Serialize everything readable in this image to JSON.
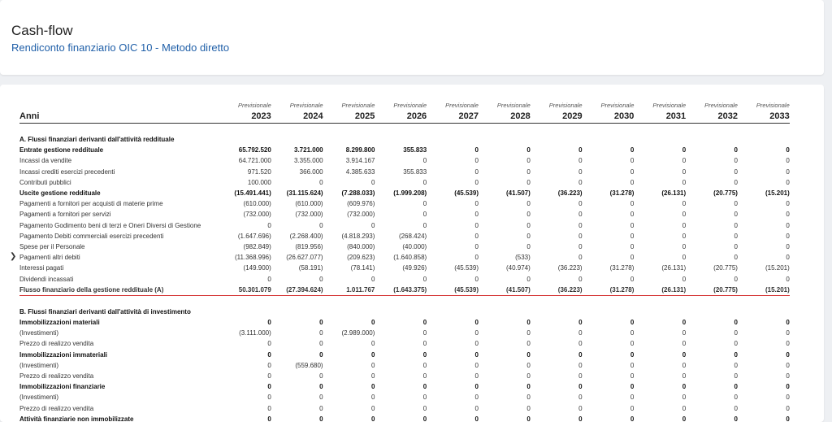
{
  "header": {
    "title": "Cash-flow",
    "subtitle": "Rendiconto finanziario OIC 10 - Metodo diretto"
  },
  "table": {
    "prev_label": "Previsionale",
    "anni_label": "Anni",
    "years": [
      "2023",
      "2024",
      "2025",
      "2026",
      "2027",
      "2028",
      "2029",
      "2030",
      "2031",
      "2032",
      "2033"
    ],
    "rows": [
      {
        "label": "A. Flussi finanziari derivanti dall'attività reddituale",
        "type": "sec",
        "values": []
      },
      {
        "label": "Entrate gestione reddituale",
        "type": "b",
        "values": [
          "65.792.520",
          "3.721.000",
          "8.299.800",
          "355.833",
          "0",
          "0",
          "0",
          "0",
          "0",
          "0",
          "0"
        ]
      },
      {
        "label": "Incassi da vendite",
        "type": "n",
        "values": [
          "64.721.000",
          "3.355.000",
          "3.914.167",
          "0",
          "0",
          "0",
          "0",
          "0",
          "0",
          "0",
          "0"
        ]
      },
      {
        "label": "Incassi crediti esercizi precedenti",
        "type": "n",
        "values": [
          "971.520",
          "366.000",
          "4.385.633",
          "355.833",
          "0",
          "0",
          "0",
          "0",
          "0",
          "0",
          "0"
        ]
      },
      {
        "label": "Contributi pubblici",
        "type": "n",
        "values": [
          "100.000",
          "0",
          "0",
          "0",
          "0",
          "0",
          "0",
          "0",
          "0",
          "0",
          "0"
        ]
      },
      {
        "label": "Uscite gestione reddituale",
        "type": "b",
        "values": [
          "(15.491.441)",
          "(31.115.624)",
          "(7.288.033)",
          "(1.999.208)",
          "(45.539)",
          "(41.507)",
          "(36.223)",
          "(31.278)",
          "(26.131)",
          "(20.775)",
          "(15.201)"
        ]
      },
      {
        "label": "Pagamenti a fornitori per acquisti di materie prime",
        "type": "n",
        "values": [
          "(610.000)",
          "(610.000)",
          "(609.976)",
          "0",
          "0",
          "0",
          "0",
          "0",
          "0",
          "0",
          "0"
        ]
      },
      {
        "label": "Pagamenti a fornitori per servizi",
        "type": "n",
        "values": [
          "(732.000)",
          "(732.000)",
          "(732.000)",
          "0",
          "0",
          "0",
          "0",
          "0",
          "0",
          "0",
          "0"
        ]
      },
      {
        "label": "Pagamento Godimento beni di terzi e Oneri Diversi di Gestione",
        "type": "n",
        "values": [
          "0",
          "0",
          "0",
          "0",
          "0",
          "0",
          "0",
          "0",
          "0",
          "0",
          "0"
        ]
      },
      {
        "label": "Pagamento Debiti commerciali esercizi precedenti",
        "type": "n",
        "values": [
          "(1.647.696)",
          "(2.268.400)",
          "(4.818.293)",
          "(268.424)",
          "0",
          "0",
          "0",
          "0",
          "0",
          "0",
          "0"
        ]
      },
      {
        "label": "Spese per il Personale",
        "type": "n",
        "values": [
          "(982.849)",
          "(819.956)",
          "(840.000)",
          "(40.000)",
          "0",
          "0",
          "0",
          "0",
          "0",
          "0",
          "0"
        ]
      },
      {
        "label": "Pagamenti altri debiti",
        "type": "n",
        "values": [
          "(11.368.996)",
          "(26.627.077)",
          "(209.623)",
          "(1.640.858)",
          "0",
          "(533)",
          "0",
          "0",
          "0",
          "0",
          "0"
        ]
      },
      {
        "label": "Interessi pagati",
        "type": "n",
        "values": [
          "(149.900)",
          "(58.191)",
          "(78.141)",
          "(49.926)",
          "(45.539)",
          "(40.974)",
          "(36.223)",
          "(31.278)",
          "(26.131)",
          "(20.775)",
          "(15.201)"
        ]
      },
      {
        "label": "Dividendi incassati",
        "type": "n",
        "values": [
          "0",
          "0",
          "0",
          "0",
          "0",
          "0",
          "0",
          "0",
          "0",
          "0",
          "0"
        ]
      },
      {
        "label": "Flusso finanziario della gestione reddituale (A)",
        "type": "tot",
        "values": [
          "50.301.079",
          "(27.394.624)",
          "1.011.767",
          "(1.643.375)",
          "(45.539)",
          "(41.507)",
          "(36.223)",
          "(31.278)",
          "(26.131)",
          "(20.775)",
          "(15.201)"
        ]
      },
      {
        "label": "",
        "type": "gap",
        "values": []
      },
      {
        "label": "B. Flussi finanziari derivanti dall'attività di investimento",
        "type": "sec",
        "values": []
      },
      {
        "label": "Immobilizzazioni materiali",
        "type": "b",
        "values": [
          "0",
          "0",
          "0",
          "0",
          "0",
          "0",
          "0",
          "0",
          "0",
          "0",
          "0"
        ]
      },
      {
        "label": "(Investimenti)",
        "type": "n",
        "values": [
          "(3.111.000)",
          "0",
          "(2.989.000)",
          "0",
          "0",
          "0",
          "0",
          "0",
          "0",
          "0",
          "0"
        ]
      },
      {
        "label": "Prezzo di realizzo vendita",
        "type": "n",
        "values": [
          "0",
          "0",
          "0",
          "0",
          "0",
          "0",
          "0",
          "0",
          "0",
          "0",
          "0"
        ]
      },
      {
        "label": "Immobilizzazioni immateriali",
        "type": "b",
        "values": [
          "0",
          "0",
          "0",
          "0",
          "0",
          "0",
          "0",
          "0",
          "0",
          "0",
          "0"
        ]
      },
      {
        "label": "(Investimenti)",
        "type": "n",
        "values": [
          "0",
          "(559.680)",
          "0",
          "0",
          "0",
          "0",
          "0",
          "0",
          "0",
          "0",
          "0"
        ]
      },
      {
        "label": "Prezzo di realizzo vendita",
        "type": "n",
        "values": [
          "0",
          "0",
          "0",
          "0",
          "0",
          "0",
          "0",
          "0",
          "0",
          "0",
          "0"
        ]
      },
      {
        "label": "Immobilizzazioni finanziarie",
        "type": "b",
        "values": [
          "0",
          "0",
          "0",
          "0",
          "0",
          "0",
          "0",
          "0",
          "0",
          "0",
          "0"
        ]
      },
      {
        "label": "(Investimenti)",
        "type": "n",
        "values": [
          "0",
          "0",
          "0",
          "0",
          "0",
          "0",
          "0",
          "0",
          "0",
          "0",
          "0"
        ]
      },
      {
        "label": "Prezzo di realizzo vendita",
        "type": "n",
        "values": [
          "0",
          "0",
          "0",
          "0",
          "0",
          "0",
          "0",
          "0",
          "0",
          "0",
          "0"
        ]
      },
      {
        "label": "Attività finanziarie non immobilizzate",
        "type": "b",
        "values": [
          "0",
          "0",
          "0",
          "0",
          "0",
          "0",
          "0",
          "0",
          "0",
          "0",
          "0"
        ]
      }
    ]
  },
  "icons": {
    "row_expander": "chevron-right-icon"
  },
  "colors": {
    "accent": "#1f5fa8",
    "negative_total": "#d42020"
  }
}
